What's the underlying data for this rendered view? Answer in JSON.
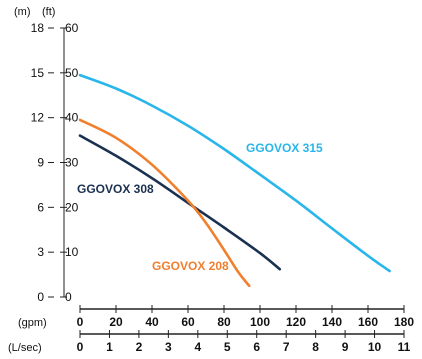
{
  "chart_data": {
    "type": "line",
    "axes": {
      "left_m": {
        "unit_label": "(m)",
        "range": [
          0,
          18
        ],
        "ticks": [
          0,
          3,
          6,
          9,
          12,
          15,
          18
        ]
      },
      "left_ft": {
        "unit_label": "(ft)",
        "range": [
          0,
          60
        ],
        "ticks": [
          0,
          10,
          20,
          30,
          40,
          50,
          60
        ]
      },
      "bottom_gpm": {
        "unit_label": "(gpm)",
        "range": [
          0,
          180
        ],
        "ticks": [
          0,
          20,
          40,
          60,
          80,
          100,
          120,
          140,
          160,
          180
        ]
      },
      "bottom_lsec": {
        "unit_label": "(L/sec)",
        "range": [
          0,
          11
        ],
        "ticks": [
          0,
          1,
          2,
          3,
          4,
          5,
          6,
          7,
          8,
          9,
          10,
          11
        ]
      }
    },
    "grid": false,
    "series": [
      {
        "name": "GGOVOX 315",
        "color": "#29b6ea",
        "x_gpm": [
          0,
          20,
          40,
          60,
          80,
          100,
          120,
          140,
          160,
          172
        ],
        "y_ft": [
          49.5,
          46.5,
          42.7,
          38.2,
          33,
          27.3,
          21.5,
          15.3,
          9.2,
          5.8
        ],
        "label_pos": "upper-right"
      },
      {
        "name": "GGOVOX 308",
        "color": "#1a3150",
        "x_gpm": [
          0,
          20,
          40,
          60,
          80,
          100,
          111
        ],
        "y_ft": [
          36,
          31.5,
          26.5,
          21,
          15.5,
          9.8,
          6.2
        ],
        "label_pos": "left"
      },
      {
        "name": "GGOVOX 208",
        "color": "#f07f2e",
        "x_gpm": [
          0,
          20,
          40,
          60,
          70,
          80,
          88,
          94
        ],
        "y_ft": [
          39.5,
          35.5,
          29.5,
          21.5,
          16.5,
          10.5,
          5.5,
          2.5
        ],
        "label_pos": "bottom"
      }
    ]
  }
}
